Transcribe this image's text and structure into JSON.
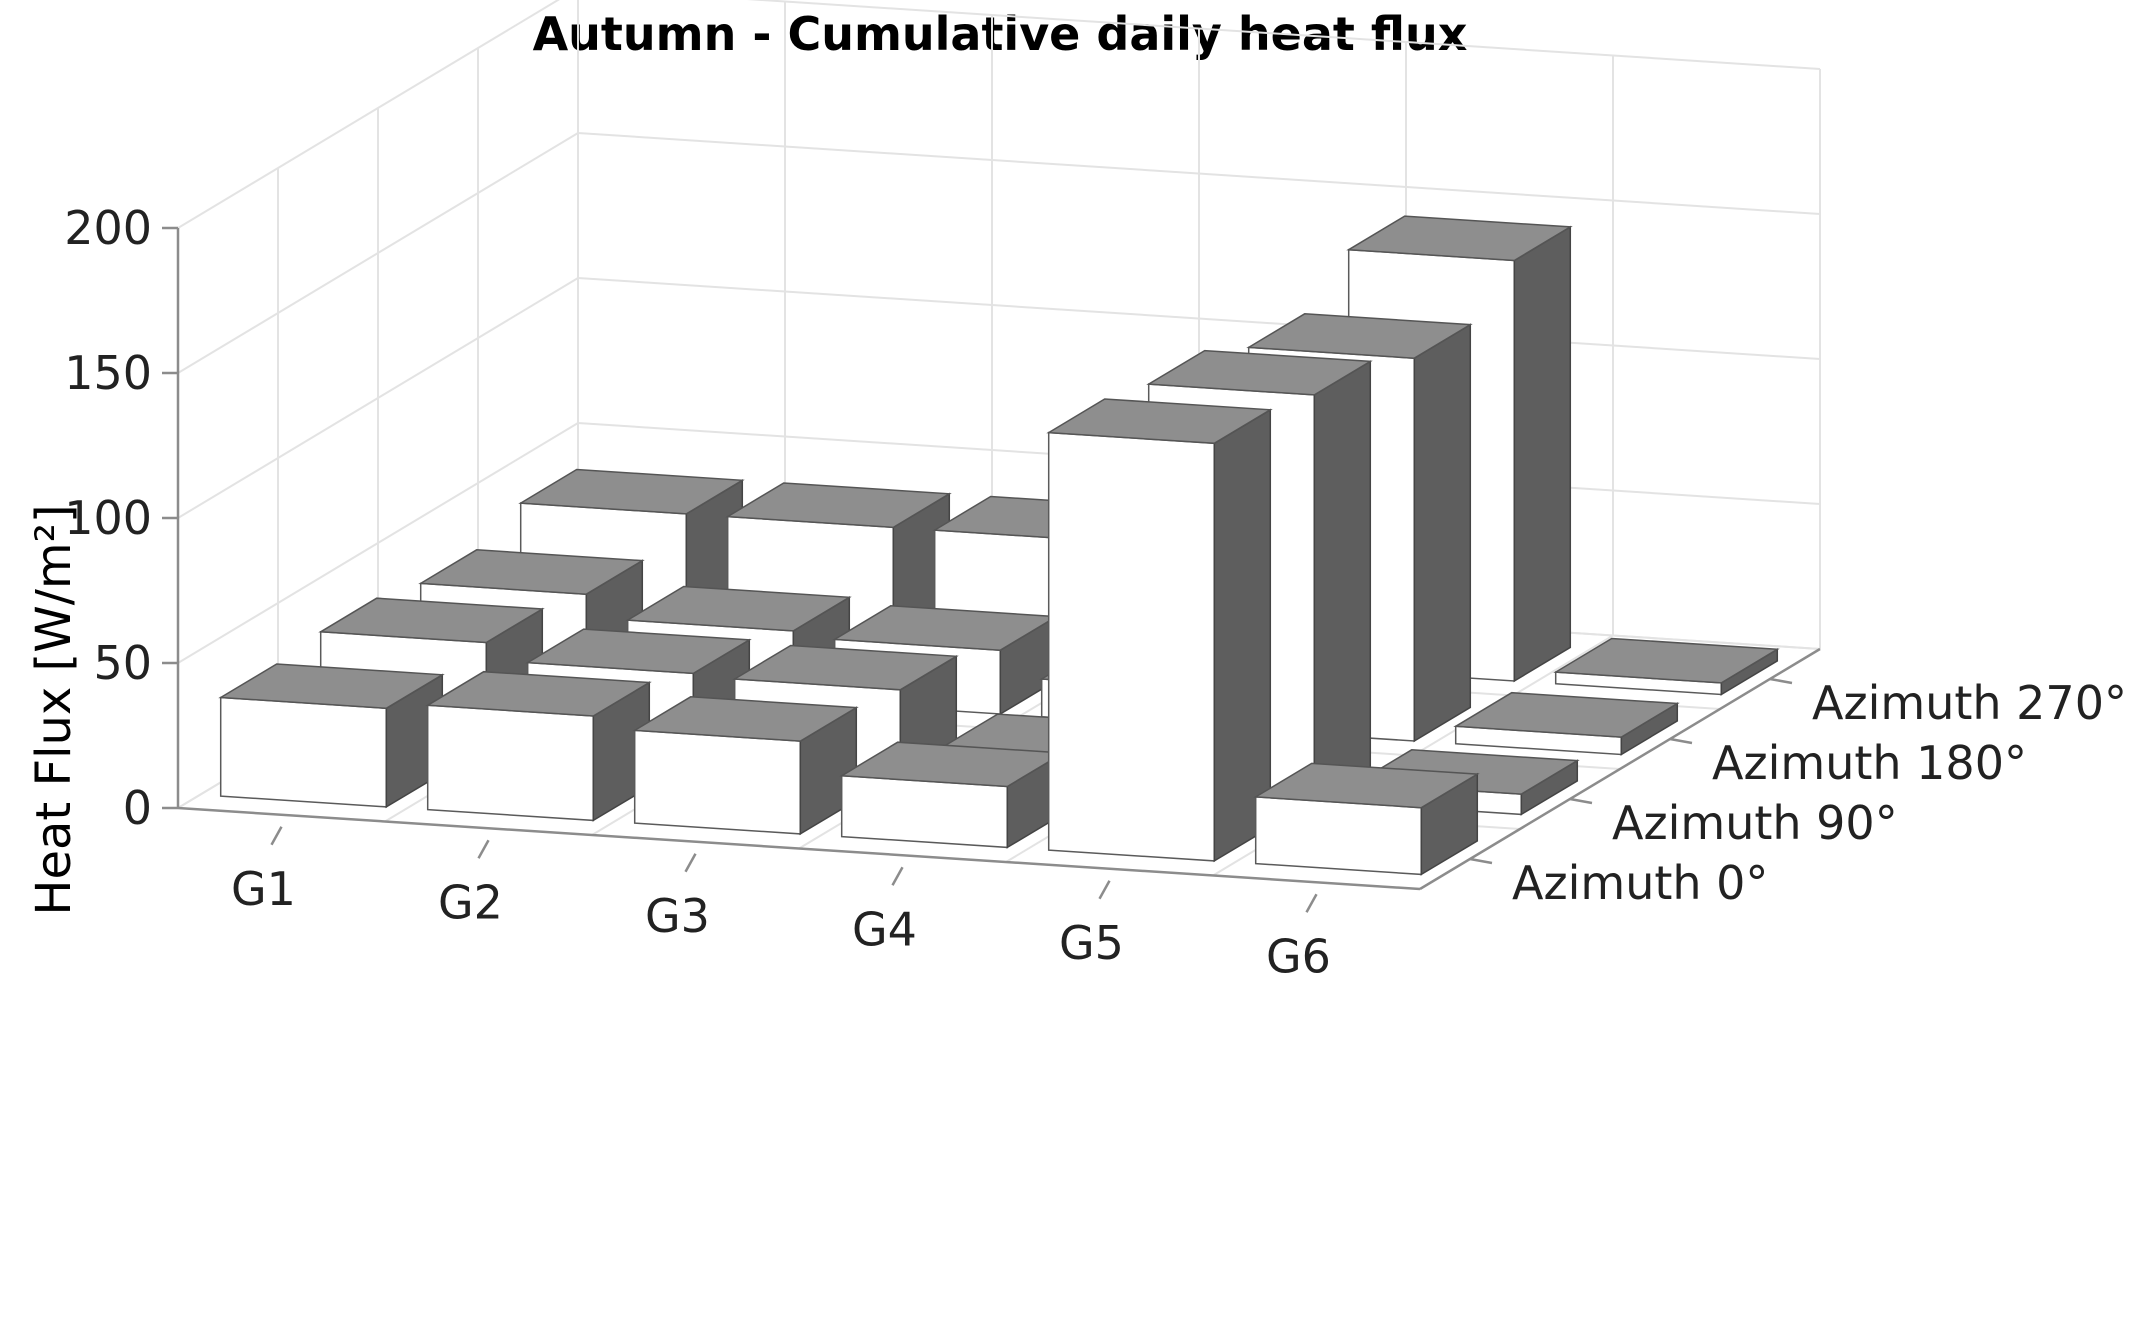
{
  "chart_data": {
    "type": "bar",
    "title": "Autumn - Cumulative daily heat flux",
    "xlabel": "",
    "ylabel": "Heat Flux [W/m²]",
    "zlim": [
      0,
      200
    ],
    "z_ticks": [
      "0",
      "50",
      "100",
      "150",
      "200"
    ],
    "categories": [
      "G1",
      "G2",
      "G3",
      "G4",
      "G5",
      "G6"
    ],
    "depth_labels": [
      "Azimuth 0°",
      "Azimuth 90°",
      "Azimuth 180°",
      "Azimuth 270°"
    ],
    "grid": true,
    "series": [
      {
        "name": "Azimuth 0°",
        "values": [
          34,
          36,
          32,
          21,
          144,
          23
        ]
      },
      {
        "name": "Azimuth 90°",
        "values": [
          36,
          30,
          29,
          10,
          140,
          7
        ]
      },
      {
        "name": "Azimuth 180°",
        "values": [
          32,
          24,
          22,
          13,
          132,
          6
        ]
      },
      {
        "name": "Azimuth 270°",
        "values": [
          39,
          39,
          39,
          26,
          145,
          4
        ]
      }
    ]
  }
}
